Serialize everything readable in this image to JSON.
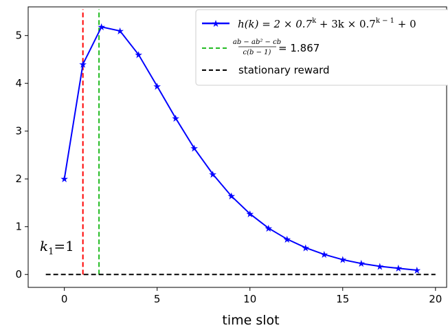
{
  "chart_data": {
    "type": "line",
    "xlabel": "time slot",
    "ylabel": "",
    "xlim": [
      -1.95,
      20.6
    ],
    "ylim": [
      -0.27,
      5.6
    ],
    "x_ticks": [
      0,
      5,
      10,
      15,
      20
    ],
    "y_ticks": [
      0,
      1,
      2,
      3,
      4,
      5
    ],
    "grid": false,
    "legend_position": "top-right",
    "series": [
      {
        "name": "h(k) = 2 × 0.7^k + 3k × 0.7^(k−1) + 0",
        "style": "solid",
        "marker": "star",
        "color": "#0000ff",
        "x": [
          0,
          1,
          2,
          3,
          4,
          5,
          6,
          7,
          8,
          9,
          10,
          11,
          12,
          13,
          14,
          15,
          16,
          17,
          18,
          19
        ],
        "y": [
          2.0,
          4.4,
          5.18,
          5.096,
          4.6,
          3.94,
          3.27,
          2.64,
          2.1,
          1.64,
          1.27,
          0.97,
          0.74,
          0.56,
          0.42,
          0.31,
          0.23,
          0.17,
          0.13,
          0.09
        ]
      },
      {
        "name": "(ab − ab² − cb) / (c(b − 1)) = 1.867",
        "style": "dashed-vertical",
        "color": "#22bb22",
        "x_value": 1.867
      },
      {
        "name": "stationary reward",
        "style": "dashed-horizontal",
        "color": "#000000",
        "y_value": 0,
        "x_range": [
          -1,
          20
        ]
      },
      {
        "name": "",
        "style": "dashed-vertical",
        "color": "#ff0000",
        "x_value": 1
      }
    ],
    "legend": {
      "entry1_main": "h(k) = 2 × 0.7",
      "entry1_sup1": "k",
      "entry1_mid": " + 3k × 0.7",
      "entry1_sup2": "k − 1",
      "entry1_tail": " + 0",
      "entry2_numerator": "ab − ab² − cb",
      "entry2_denominator": "c(b − 1)",
      "entry2_value": " = 1.867",
      "entry3_label": "stationary reward"
    },
    "annotation": {
      "label_base": "k",
      "label_sub": "1",
      "label_tail": "=1"
    },
    "colors": {
      "curve": "#0000ff",
      "green_line": "#22bb22",
      "red_line": "#ff0000",
      "stationary": "#000000"
    }
  }
}
